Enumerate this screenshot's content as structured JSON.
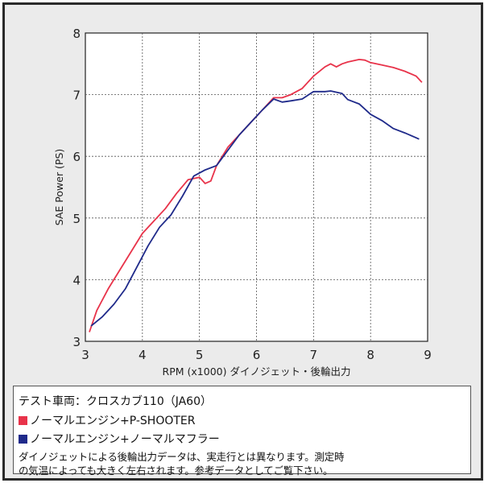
{
  "chart_data": {
    "type": "line",
    "xlabel": "RPM (x1000) ダイノジェット・後輪出力",
    "ylabel": "SAE Power (PS)",
    "xlim": [
      3,
      9
    ],
    "ylim": [
      3,
      8
    ],
    "xticks": [
      "3",
      "4",
      "5",
      "6",
      "7",
      "8",
      "9"
    ],
    "yticks": [
      "3",
      "4",
      "5",
      "6",
      "7",
      "8"
    ],
    "grid": true,
    "series": [
      {
        "color": "#e8334a",
        "x": [
          3.07,
          3.2,
          3.4,
          3.6,
          3.8,
          4.0,
          4.2,
          4.4,
          4.6,
          4.8,
          5.0,
          5.1,
          5.2,
          5.3,
          5.5,
          5.7,
          5.9,
          6.1,
          6.3,
          6.45,
          6.6,
          6.8,
          7.0,
          7.2,
          7.3,
          7.4,
          7.5,
          7.6,
          7.8,
          7.9,
          8.0,
          8.2,
          8.4,
          8.6,
          8.8,
          8.9
        ],
        "y": [
          3.15,
          3.5,
          3.85,
          4.15,
          4.45,
          4.75,
          4.95,
          5.15,
          5.4,
          5.62,
          5.66,
          5.56,
          5.6,
          5.85,
          6.15,
          6.35,
          6.55,
          6.75,
          6.95,
          6.95,
          7.0,
          7.1,
          7.3,
          7.45,
          7.5,
          7.45,
          7.5,
          7.53,
          7.57,
          7.56,
          7.52,
          7.48,
          7.44,
          7.38,
          7.3,
          7.2
        ]
      },
      {
        "color": "#1f2a8a",
        "x": [
          3.1,
          3.3,
          3.5,
          3.7,
          3.9,
          4.1,
          4.3,
          4.5,
          4.7,
          4.9,
          5.1,
          5.3,
          5.5,
          5.7,
          5.9,
          6.1,
          6.3,
          6.45,
          6.6,
          6.8,
          7.0,
          7.2,
          7.3,
          7.5,
          7.6,
          7.8,
          8.0,
          8.2,
          8.4,
          8.6,
          8.8,
          8.85
        ],
        "y": [
          3.25,
          3.4,
          3.6,
          3.85,
          4.2,
          4.55,
          4.85,
          5.05,
          5.35,
          5.68,
          5.78,
          5.85,
          6.1,
          6.35,
          6.55,
          6.75,
          6.93,
          6.88,
          6.9,
          6.93,
          7.05,
          7.05,
          7.06,
          7.02,
          6.92,
          6.85,
          6.68,
          6.58,
          6.45,
          6.38,
          6.3,
          6.28
        ]
      }
    ]
  },
  "info": {
    "vehicle": "テスト車両：クロスカブ110（JA60）",
    "legend_red": "ノーマルエンジン+P-SHOOTER",
    "legend_blue": "ノーマルエンジン+ノーマルマフラー",
    "note_line1": "ダイノジェットによる後輪出力データは、実走行とは異なります。測定時",
    "note_line2": "の気温によっても大きく左右されます。参考データとしてご覧下さい。"
  }
}
